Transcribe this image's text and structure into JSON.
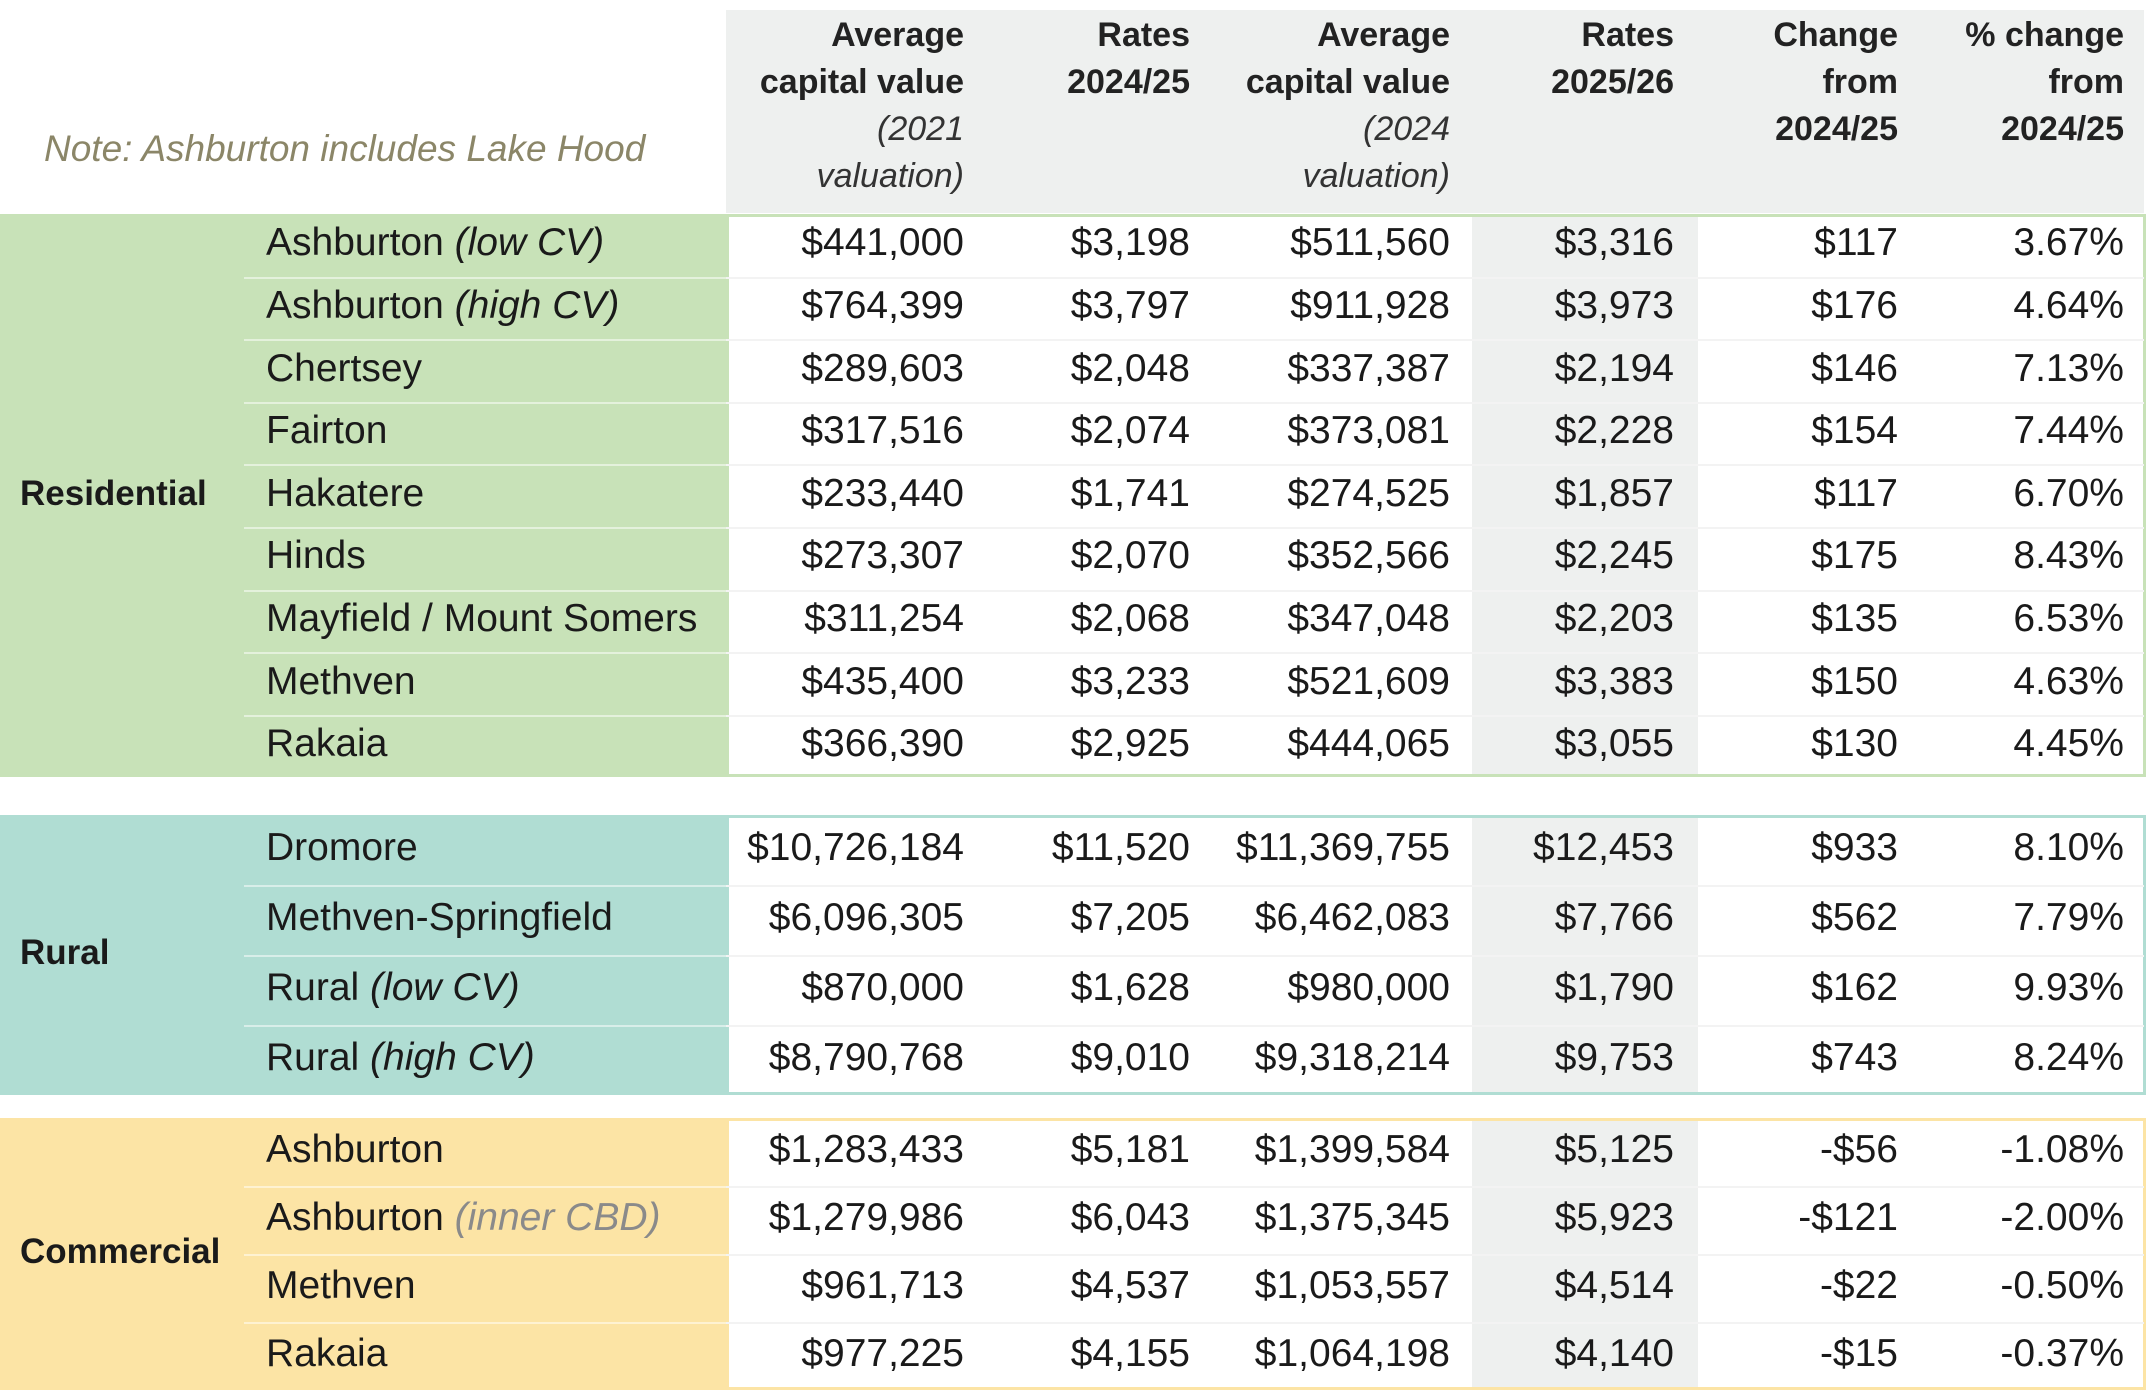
{
  "note": "Note:  Ashburton includes Lake Hood",
  "headers": {
    "avg_cv_2021": {
      "line1": "Average",
      "line2": "capital value",
      "line3": "(2021",
      "line4": "valuation)"
    },
    "rates_2425": {
      "line1": "Rates",
      "line2": "2024/25"
    },
    "avg_cv_2024": {
      "line1": "Average",
      "line2": "capital value",
      "line3": "(2024",
      "line4": "valuation)"
    },
    "rates_2526": {
      "line1": "Rates",
      "line2": "2025/26"
    },
    "change": {
      "line1": "Change",
      "line2": "from",
      "line3": "2024/25"
    },
    "pct_change": {
      "line1": "% change",
      "line2": "from",
      "line3": "2024/25"
    }
  },
  "colors": {
    "residential": "#c8e2b8",
    "rural": "#b0ddd3",
    "commercial": "#fce4a5",
    "header_band": "#eef0ef",
    "note_text": "#8b8668"
  },
  "groups": [
    {
      "category": "Residential",
      "rows": [
        {
          "name": "Ashburton",
          "qualifier": "(low CV)",
          "cv2021": "$441,000",
          "rates2425": "$3,198",
          "cv2024": "$511,560",
          "rates2526": "$3,316",
          "change": "$117",
          "pct": "3.67%"
        },
        {
          "name": "Ashburton",
          "qualifier": "(high CV)",
          "cv2021": "$764,399",
          "rates2425": "$3,797",
          "cv2024": "$911,928",
          "rates2526": "$3,973",
          "change": "$176",
          "pct": "4.64%"
        },
        {
          "name": "Chertsey",
          "qualifier": "",
          "cv2021": "$289,603",
          "rates2425": "$2,048",
          "cv2024": "$337,387",
          "rates2526": "$2,194",
          "change": "$146",
          "pct": "7.13%"
        },
        {
          "name": "Fairton",
          "qualifier": "",
          "cv2021": "$317,516",
          "rates2425": "$2,074",
          "cv2024": "$373,081",
          "rates2526": "$2,228",
          "change": "$154",
          "pct": "7.44%"
        },
        {
          "name": "Hakatere",
          "qualifier": "",
          "cv2021": "$233,440",
          "rates2425": "$1,741",
          "cv2024": "$274,525",
          "rates2526": "$1,857",
          "change": "$117",
          "pct": "6.70%"
        },
        {
          "name": "Hinds",
          "qualifier": "",
          "cv2021": "$273,307",
          "rates2425": "$2,070",
          "cv2024": "$352,566",
          "rates2526": "$2,245",
          "change": "$175",
          "pct": "8.43%"
        },
        {
          "name": "Mayfield / Mount Somers",
          "qualifier": "",
          "cv2021": "$311,254",
          "rates2425": "$2,068",
          "cv2024": "$347,048",
          "rates2526": "$2,203",
          "change": "$135",
          "pct": "6.53%"
        },
        {
          "name": "Methven",
          "qualifier": "",
          "cv2021": "$435,400",
          "rates2425": "$3,233",
          "cv2024": "$521,609",
          "rates2526": "$3,383",
          "change": "$150",
          "pct": "4.63%"
        },
        {
          "name": "Rakaia",
          "qualifier": "",
          "cv2021": "$366,390",
          "rates2425": "$2,925",
          "cv2024": "$444,065",
          "rates2526": "$3,055",
          "change": "$130",
          "pct": "4.45%"
        }
      ]
    },
    {
      "category": "Rural",
      "rows": [
        {
          "name": "Dromore",
          "qualifier": "",
          "cv2021": "$10,726,184",
          "rates2425": "$11,520",
          "cv2024": "$11,369,755",
          "rates2526": "$12,453",
          "change": "$933",
          "pct": "8.10%"
        },
        {
          "name": "Methven-Springfield",
          "qualifier": "",
          "cv2021": "$6,096,305",
          "rates2425": "$7,205",
          "cv2024": "$6,462,083",
          "rates2526": "$7,766",
          "change": "$562",
          "pct": "7.79%"
        },
        {
          "name": "Rural",
          "qualifier": "(low CV)",
          "cv2021": "$870,000",
          "rates2425": "$1,628",
          "cv2024": "$980,000",
          "rates2526": "$1,790",
          "change": "$162",
          "pct": "9.93%"
        },
        {
          "name": "Rural",
          "qualifier": "(high CV)",
          "cv2021": "$8,790,768",
          "rates2425": "$9,010",
          "cv2024": "$9,318,214",
          "rates2526": "$9,753",
          "change": "$743",
          "pct": "8.24%"
        }
      ]
    },
    {
      "category": "Commercial",
      "rows": [
        {
          "name": "Ashburton",
          "qualifier": "",
          "cv2021": "$1,283,433",
          "rates2425": "$5,181",
          "cv2024": "$1,399,584",
          "rates2526": "$5,125",
          "change": "-$56",
          "pct": "-1.08%"
        },
        {
          "name": "Ashburton",
          "qualifier": "(inner CBD)",
          "cv2021": "$1,279,986",
          "rates2425": "$6,043",
          "cv2024": "$1,375,345",
          "rates2526": "$5,923",
          "change": "-$121",
          "pct": "-2.00%"
        },
        {
          "name": "Methven",
          "qualifier": "",
          "cv2021": "$961,713",
          "rates2425": "$4,537",
          "cv2024": "$1,053,557",
          "rates2526": "$4,514",
          "change": "-$22",
          "pct": "-0.50%"
        },
        {
          "name": "Rakaia",
          "qualifier": "",
          "cv2021": "$977,225",
          "rates2425": "$4,155",
          "cv2024": "$1,064,198",
          "rates2526": "$4,140",
          "change": "-$15",
          "pct": "-0.37%"
        }
      ]
    }
  ]
}
